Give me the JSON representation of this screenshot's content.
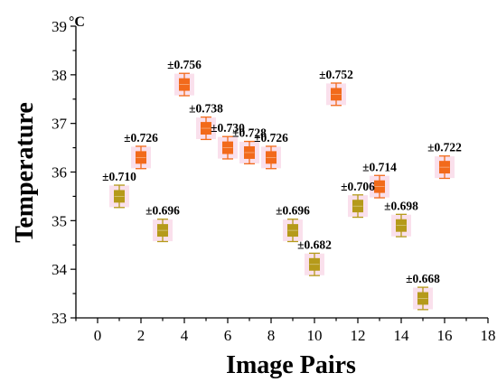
{
  "chart_data": {
    "type": "box",
    "xlabel": "Image Pairs",
    "ylabel": "Temperature",
    "unit": "°C",
    "xlim": [
      -1,
      18
    ],
    "ylim": [
      33,
      39
    ],
    "xticks": [
      0,
      2,
      4,
      6,
      8,
      10,
      12,
      14,
      16,
      18
    ],
    "yticks": [
      33,
      34,
      35,
      36,
      37,
      38,
      39
    ],
    "grid": false,
    "series": [
      {
        "group": "orange",
        "color": "#f26a1b",
        "points": [
          {
            "x": 2,
            "y": 36.3,
            "label": "±0.726"
          },
          {
            "x": 4,
            "y": 37.8,
            "label": "±0.756"
          },
          {
            "x": 5,
            "y": 36.9,
            "label": "±0.738"
          },
          {
            "x": 6,
            "y": 36.5,
            "label": "±0.730"
          },
          {
            "x": 7,
            "y": 36.4,
            "label": "±0.728"
          },
          {
            "x": 8,
            "y": 36.3,
            "label": "±0.726"
          },
          {
            "x": 11,
            "y": 37.6,
            "label": "±0.752"
          },
          {
            "x": 13,
            "y": 35.7,
            "label": "±0.714"
          },
          {
            "x": 16,
            "y": 36.1,
            "label": "±0.722"
          }
        ]
      },
      {
        "group": "olive",
        "color": "#b59a1a",
        "points": [
          {
            "x": 1,
            "y": 35.5,
            "label": "±0.710"
          },
          {
            "x": 3,
            "y": 34.8,
            "label": "±0.696"
          },
          {
            "x": 9,
            "y": 34.8,
            "label": "±0.696"
          },
          {
            "x": 10,
            "y": 34.1,
            "label": "±0.682"
          },
          {
            "x": 12,
            "y": 35.3,
            "label": "±0.706"
          },
          {
            "x": 14,
            "y": 34.9,
            "label": "±0.698"
          },
          {
            "x": 15,
            "y": 33.4,
            "label": "±0.668"
          }
        ]
      }
    ],
    "box_half_range": 0.12,
    "whisker_half_range": 0.23
  }
}
